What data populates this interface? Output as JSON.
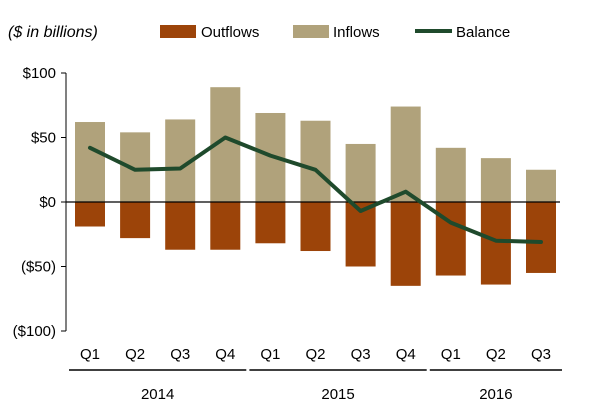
{
  "chart_data": {
    "type": "bar",
    "subtitle": "($ in billions)",
    "categories": [
      "Q1",
      "Q2",
      "Q3",
      "Q4",
      "Q1",
      "Q2",
      "Q3",
      "Q4",
      "Q1",
      "Q2",
      "Q3"
    ],
    "groups": [
      {
        "label": "2014",
        "count": 4
      },
      {
        "label": "2015",
        "count": 4
      },
      {
        "label": "2016",
        "count": 3
      }
    ],
    "series": [
      {
        "name": "Outflows",
        "type": "bar",
        "color": "#9c4409",
        "values": [
          -19,
          -28,
          -37,
          -37,
          -32,
          -38,
          -50,
          -65,
          -57,
          -64,
          -55
        ]
      },
      {
        "name": "Inflows",
        "type": "bar",
        "color": "#b0a27b",
        "values": [
          62,
          54,
          64,
          89,
          69,
          63,
          45,
          74,
          42,
          34,
          25
        ]
      },
      {
        "name": "Balance",
        "type": "line",
        "color": "#1f4a2c",
        "values": [
          42,
          25,
          26,
          50,
          36,
          25,
          -7,
          8,
          -16,
          -30,
          -31
        ]
      }
    ],
    "yticks": [
      100,
      50,
      0,
      -50,
      -100
    ],
    "ytick_labels": [
      "$100",
      "$50",
      "$0",
      "($50)",
      "($100)"
    ],
    "ylim": [
      -100,
      100
    ],
    "legend_position": "top",
    "grid": false
  }
}
